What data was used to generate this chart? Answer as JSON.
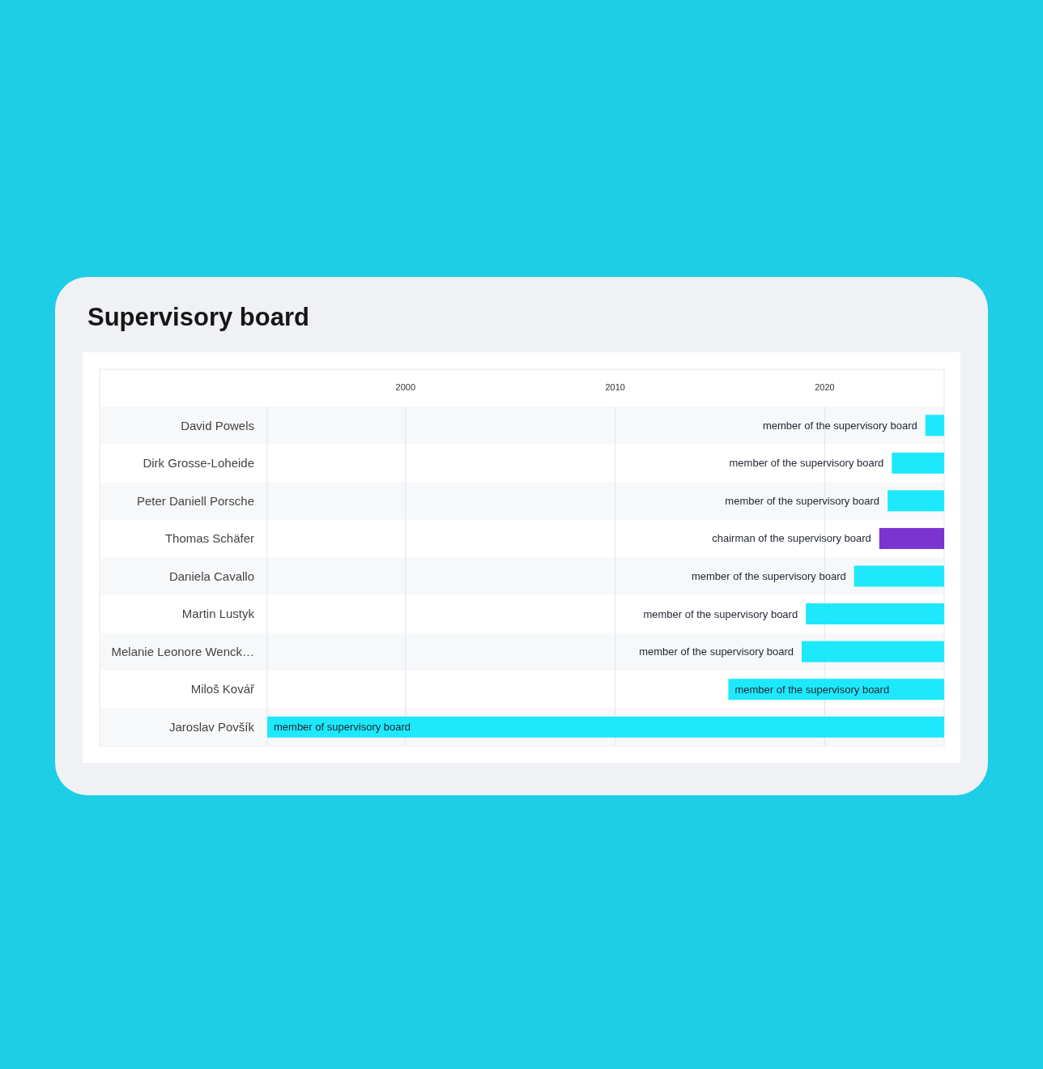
{
  "chart_data": {
    "type": "bar",
    "orientation": "horizontal",
    "title": "Supervisory board",
    "categories": [
      "David Powels",
      "Dirk Grosse-Loheide",
      "Peter Daniell Porsche",
      "Thomas Schäfer",
      "Daniela Cavallo",
      "Martin Lustyk",
      "Melanie Leonore Wenck…",
      "Miloš Kovář",
      "Jaroslav Povšík"
    ],
    "base": [
      2024.8,
      2023.2,
      2023.0,
      2022.6,
      2021.4,
      2019.1,
      2018.9,
      2015.4,
      1993.4
    ],
    "values": [
      0.9,
      2.5,
      2.7,
      3.1,
      4.3,
      6.6,
      6.8,
      10.3,
      32.3
    ],
    "colors": [
      "#1ee8fb",
      "#1ee8fb",
      "#1ee8fb",
      "#7a35d0",
      "#1ee8fb",
      "#1ee8fb",
      "#1ee8fb",
      "#1ee8fb",
      "#1ee8fb"
    ],
    "value_labels": [
      "member of the supervisory board",
      "member of the supervisory board",
      "member of the supervisory board",
      "chairman of the supervisory board",
      "member of the supervisory board",
      "member of the supervisory board",
      "member of the supervisory board",
      "member of the supervisory board",
      "member of supervisory board"
    ],
    "xlim": [
      1993.4,
      2025.7
    ],
    "xticks": [
      2000,
      2010,
      2020
    ],
    "grid": "x"
  }
}
